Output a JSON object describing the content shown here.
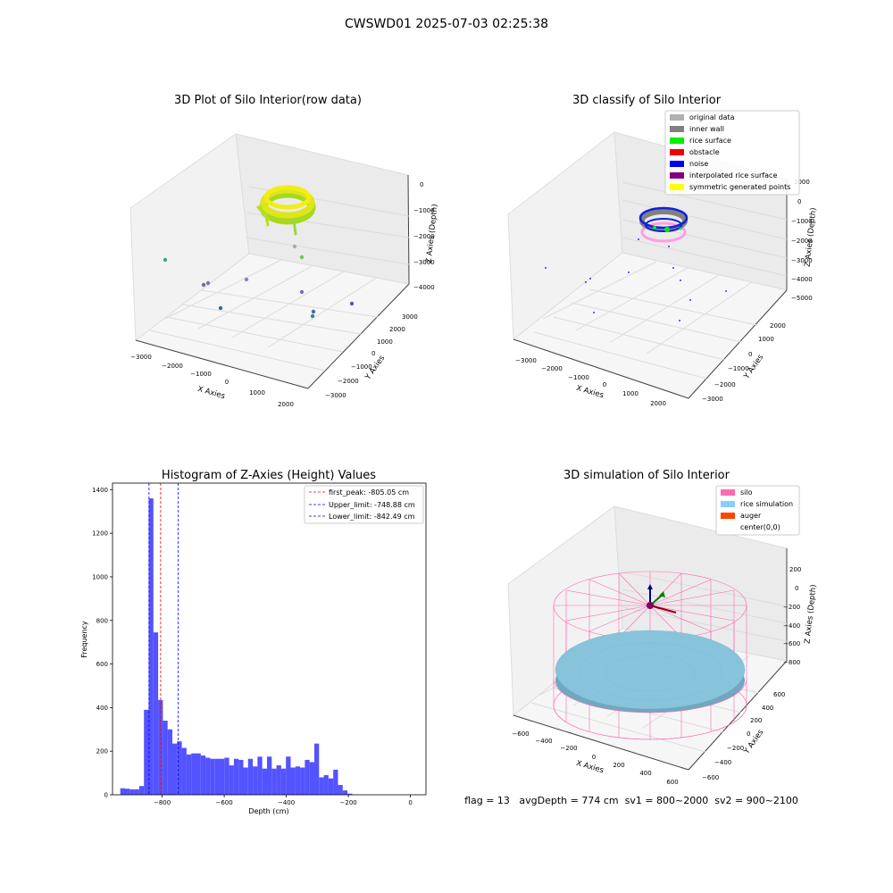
{
  "figure": {
    "suptitle": "CWSWD01 2025-07-03 02:25:38",
    "footer": "flag = 13   avgDepth = 774 cm  sv1 = 800~2000  sv2 = 900~2100"
  },
  "panels": {
    "raw": {
      "title": "3D Plot of Silo Interior(row data)",
      "xlabel": "X Axies",
      "ylabel": "Y Axies",
      "zlabel": "Z Axies (Depth)",
      "xticks": [
        "−3000",
        "−2000",
        "−1000",
        "0",
        "1000",
        "2000"
      ],
      "yticks": [
        "−3000",
        "−2000",
        "−1000",
        "0",
        "1000",
        "2000",
        "3000"
      ],
      "zticks": [
        "−4000",
        "−3000",
        "−2000",
        "−1000",
        "0"
      ]
    },
    "classify": {
      "title": "3D classify of Silo Interior",
      "xlabel": "X Axies",
      "ylabel": "Y Axies",
      "zlabel": "Z Axies (Depth)",
      "xticks": [
        "−3000",
        "−2000",
        "−1000",
        "0",
        "1000",
        "2000"
      ],
      "yticks": [
        "−3000",
        "−2000",
        "−1000",
        "0",
        "1000",
        "2000"
      ],
      "zticks": [
        "−5000",
        "−4000",
        "−3000",
        "−2000",
        "−1000",
        "0",
        "1000"
      ],
      "legend": [
        {
          "label": "original data",
          "color": "#b0b0b0"
        },
        {
          "label": "inner wall",
          "color": "#808080"
        },
        {
          "label": "rice surface",
          "color": "#00ee00"
        },
        {
          "label": "obstacle",
          "color": "#ee0000"
        },
        {
          "label": "noise",
          "color": "#0000ee"
        },
        {
          "label": "interpolated rice surface",
          "color": "#800080"
        },
        {
          "label": "symmetric generated points",
          "color": "#ffff00"
        }
      ]
    },
    "simulation": {
      "title": "3D simulation of Silo Interior",
      "xlabel": "X Axies",
      "ylabel": "Y Axies",
      "zlabel": "Z Axies (Depth)",
      "xticks": [
        "−600",
        "−400",
        "−200",
        "0",
        "200",
        "400",
        "600"
      ],
      "yticks": [
        "−600",
        "−400",
        "−200",
        "0",
        "200",
        "400",
        "600"
      ],
      "zticks": [
        "−800",
        "−600",
        "−400",
        "−200",
        "0",
        "200"
      ],
      "legend": [
        {
          "label": "silo",
          "color": "#ff69b4"
        },
        {
          "label": "rice simulation",
          "color": "#87cefa"
        },
        {
          "label": "auger",
          "color": "#ff4500"
        },
        {
          "label": "center(0,0)",
          "color": "#ffffff"
        }
      ]
    }
  },
  "chart_data": {
    "type": "bar",
    "title": "Histogram of Z-Axies (Height) Values",
    "xlabel": "Depth (cm)",
    "ylabel": "Frequency",
    "xlim": [
      -960,
      50
    ],
    "ylim": [
      0,
      1430
    ],
    "xticks": [
      -800,
      -600,
      -400,
      -200,
      0
    ],
    "yticks": [
      0,
      200,
      400,
      600,
      800,
      1000,
      1200,
      1400
    ],
    "bin_start": -935,
    "bin_width": 15.25,
    "values": [
      30,
      28,
      25,
      25,
      40,
      390,
      1360,
      745,
      435,
      340,
      300,
      235,
      245,
      215,
      185,
      190,
      190,
      180,
      170,
      165,
      165,
      165,
      170,
      135,
      165,
      160,
      125,
      165,
      130,
      175,
      120,
      175,
      120,
      135,
      120,
      175,
      125,
      130,
      125,
      160,
      150,
      235,
      80,
      90,
      75,
      115,
      45,
      20,
      5
    ],
    "vlines": [
      {
        "x": -805.05,
        "color": "#ff0000",
        "label": "first_peak: -805.05 cm"
      },
      {
        "x": -748.88,
        "color": "#0000ff",
        "label": "Upper_limit: -748.88 cm"
      },
      {
        "x": -842.49,
        "color": "#0000ff",
        "label": "Lower_limit: -842.49 cm"
      }
    ],
    "bar_color": "#4444ff",
    "legend_position": "upper right"
  }
}
